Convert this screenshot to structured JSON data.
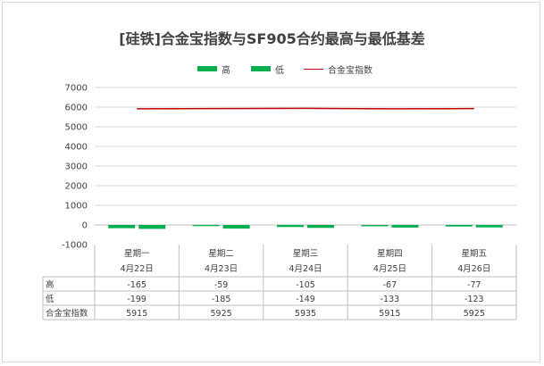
{
  "chart_data": {
    "type": "bar",
    "title": "[硅铁]合金宝指数与SF905合约最高与最低基差",
    "categories": [
      {
        "day": "星期一",
        "date": "4月22日"
      },
      {
        "day": "星期二",
        "date": "4月23日"
      },
      {
        "day": "星期三",
        "date": "4月24日"
      },
      {
        "day": "星期四",
        "date": "4月25日"
      },
      {
        "day": "星期五",
        "date": "4月26日"
      }
    ],
    "series": [
      {
        "name": "高",
        "type": "bar",
        "color": "#00b050",
        "values": [
          -165,
          -59,
          -105,
          -67,
          -77
        ]
      },
      {
        "name": "低",
        "type": "bar",
        "color": "#00b050",
        "values": [
          -199,
          -185,
          -149,
          -133,
          -123
        ]
      },
      {
        "name": "合金宝指数",
        "type": "line",
        "color": "#c00000",
        "values": [
          5915,
          5925,
          5935,
          5915,
          5925
        ]
      }
    ],
    "ylim": [
      -1000,
      7000
    ],
    "yticks": [
      "7000",
      "6000",
      "5000",
      "4000",
      "3000",
      "2000",
      "1000",
      "0",
      "-1000"
    ],
    "grid": true,
    "legend": "top",
    "data_table": {
      "row_labels": [
        "高",
        "低",
        "合金宝指数"
      ],
      "rows": [
        [
          "-165",
          "-59",
          "-105",
          "-67",
          "-77"
        ],
        [
          "-199",
          "-185",
          "-149",
          "-133",
          "-123"
        ],
        [
          "5915",
          "5925",
          "5935",
          "5915",
          "5925"
        ]
      ]
    }
  }
}
